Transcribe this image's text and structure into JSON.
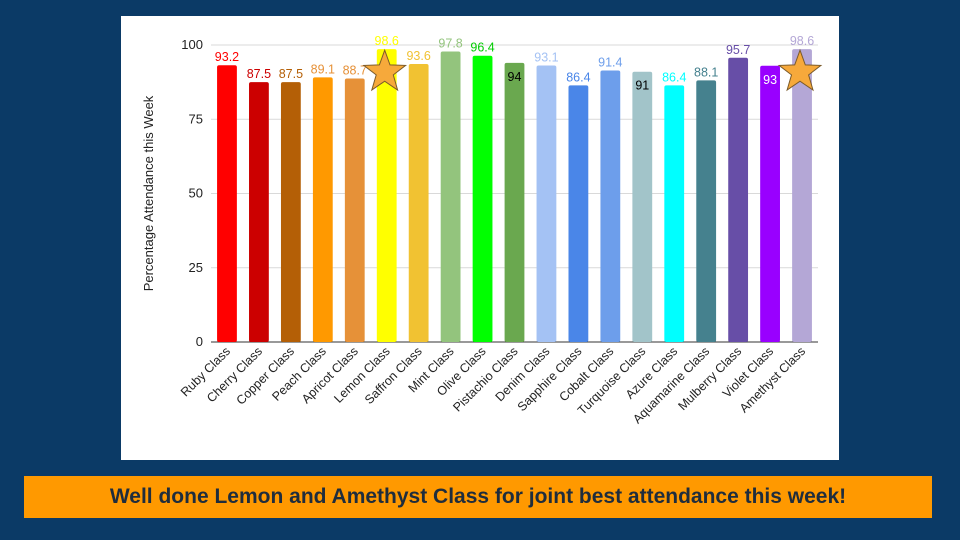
{
  "banner": {
    "text": "Well done Lemon and Amethyst Class for joint best attendance this week!"
  },
  "chart_data": {
    "type": "bar",
    "title": "",
    "xlabel": "",
    "ylabel": "Percentage Attendance this Week",
    "ylim": [
      0,
      100
    ],
    "yticks": [
      0,
      25,
      50,
      75,
      100
    ],
    "grid": true,
    "categories": [
      "Ruby Class",
      "Cherry Class",
      "Copper Class",
      "Peach Class",
      "Apricot Class",
      "Lemon Class",
      "Saffron Class",
      "Mint Class",
      "Olive Class",
      "Pistachio Class",
      "Denim Class",
      "Sapphire Class",
      "Cobalt Class",
      "Turquoise Class",
      "Azure Class",
      "Aquamarine Class",
      "Mulberry Class",
      "Violet Class",
      "Amethyst Class"
    ],
    "values": [
      93.2,
      87.5,
      87.5,
      89.1,
      88.7,
      98.6,
      93.6,
      97.8,
      96.4,
      94,
      93.1,
      86.4,
      91.4,
      91,
      86.4,
      88.1,
      95.7,
      93,
      98.6
    ],
    "value_labels": [
      "93.2",
      "87.5",
      "87.5",
      "89.1",
      "88.7",
      "98.6",
      "93.6",
      "97.8",
      "96.4",
      "94",
      "93.1",
      "86.4",
      "91.4",
      "91",
      "86.4",
      "88.1",
      "95.7",
      "93",
      "98.6"
    ],
    "colors": [
      "#ff0000",
      "#cc0000",
      "#b45f06",
      "#ff9900",
      "#e69138",
      "#ffff00",
      "#f1c232",
      "#93c47d",
      "#00ff00",
      "#6aa84f",
      "#a4c2f4",
      "#4a86e8",
      "#6d9eeb",
      "#a2c4c9",
      "#00ffff",
      "#45818e",
      "#674ea7",
      "#9900ff",
      "#b4a7d6"
    ],
    "label_colors": [
      "#ff0000",
      "#cc0000",
      "#b45f06",
      "#e69138",
      "#e69138",
      "#ffff00",
      "#f1c232",
      "#93c47d",
      "#00cc00",
      "#000000",
      "#a4c2f4",
      "#4a86e8",
      "#6d9eeb",
      "#000000",
      "#00ffff",
      "#45818e",
      "#674ea7",
      "#ffffff",
      "#b4a7d6"
    ],
    "label_inside": [
      false,
      false,
      false,
      false,
      false,
      false,
      false,
      false,
      false,
      true,
      false,
      false,
      false,
      true,
      false,
      false,
      false,
      true,
      false
    ],
    "highlighted": [
      "Lemon Class",
      "Amethyst Class"
    ],
    "highlight_icon": "star-icon",
    "highlight_color": "#f6a93b"
  }
}
